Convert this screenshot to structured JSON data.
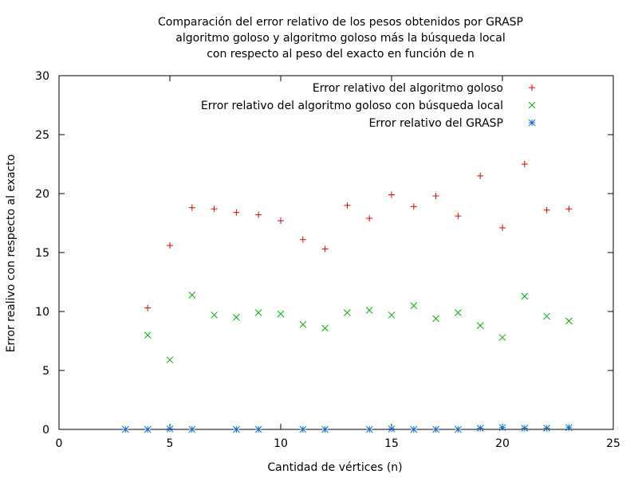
{
  "chart_data": {
    "type": "scatter",
    "title_lines": [
      "Comparación del error relativo de los pesos obtenidos por GRASP",
      "algoritmo goloso y algoritmo goloso más la búsqueda local",
      "con respecto al peso del exacto en función de n"
    ],
    "xlabel": "Cantidad de vértices (n)",
    "ylabel": "Error realivo con respecto al exacto",
    "xlim": [
      0,
      25
    ],
    "ylim": [
      0,
      30
    ],
    "xticks": [
      0,
      5,
      10,
      15,
      20,
      25
    ],
    "yticks": [
      0,
      5,
      10,
      15,
      20,
      25,
      30
    ],
    "grid": false,
    "legend_position": "top-right",
    "series": [
      {
        "name": "Error relativo del algoritmo goloso",
        "marker": "plus",
        "color": "#e00000",
        "points": [
          [
            4,
            10.3
          ],
          [
            5,
            15.6
          ],
          [
            6,
            18.8
          ],
          [
            7,
            18.7
          ],
          [
            8,
            18.4
          ],
          [
            9,
            18.2
          ],
          [
            10,
            17.7
          ],
          [
            11,
            16.1
          ],
          [
            12,
            15.3
          ],
          [
            13,
            19.0
          ],
          [
            14,
            17.9
          ],
          [
            15,
            19.9
          ],
          [
            16,
            18.9
          ],
          [
            17,
            19.8
          ],
          [
            18,
            18.1
          ],
          [
            19,
            21.5
          ],
          [
            20,
            17.1
          ],
          [
            21,
            22.5
          ],
          [
            22,
            18.6
          ],
          [
            23,
            18.7
          ]
        ]
      },
      {
        "name": "Error relativo del algoritmo goloso con búsqueda local",
        "marker": "cross",
        "color": "#00b000",
        "points": [
          [
            4,
            8.0
          ],
          [
            5,
            5.9
          ],
          [
            6,
            11.4
          ],
          [
            7,
            9.7
          ],
          [
            8,
            9.5
          ],
          [
            9,
            9.9
          ],
          [
            10,
            9.8
          ],
          [
            11,
            8.9
          ],
          [
            12,
            8.6
          ],
          [
            13,
            9.9
          ],
          [
            14,
            10.1
          ],
          [
            15,
            9.7
          ],
          [
            16,
            10.5
          ],
          [
            17,
            9.4
          ],
          [
            18,
            9.9
          ],
          [
            19,
            8.8
          ],
          [
            20,
            7.8
          ],
          [
            21,
            11.3
          ],
          [
            22,
            9.6
          ],
          [
            23,
            9.2
          ]
        ]
      },
      {
        "name": "Error relativo del GRASP",
        "marker": "star",
        "color": "#1070c0",
        "points": [
          [
            3,
            0.0
          ],
          [
            4,
            0.0
          ],
          [
            5,
            0.05
          ],
          [
            6,
            0.0
          ],
          [
            8,
            0.0
          ],
          [
            9,
            0.0
          ],
          [
            11,
            0.0
          ],
          [
            12,
            0.0
          ],
          [
            14,
            0.0
          ],
          [
            15,
            0.05
          ],
          [
            16,
            0.0
          ],
          [
            17,
            0.0
          ],
          [
            18,
            0.0
          ],
          [
            19,
            0.1
          ],
          [
            20,
            0.15
          ],
          [
            21,
            0.1
          ],
          [
            22,
            0.1
          ],
          [
            23,
            0.15
          ]
        ]
      }
    ]
  }
}
